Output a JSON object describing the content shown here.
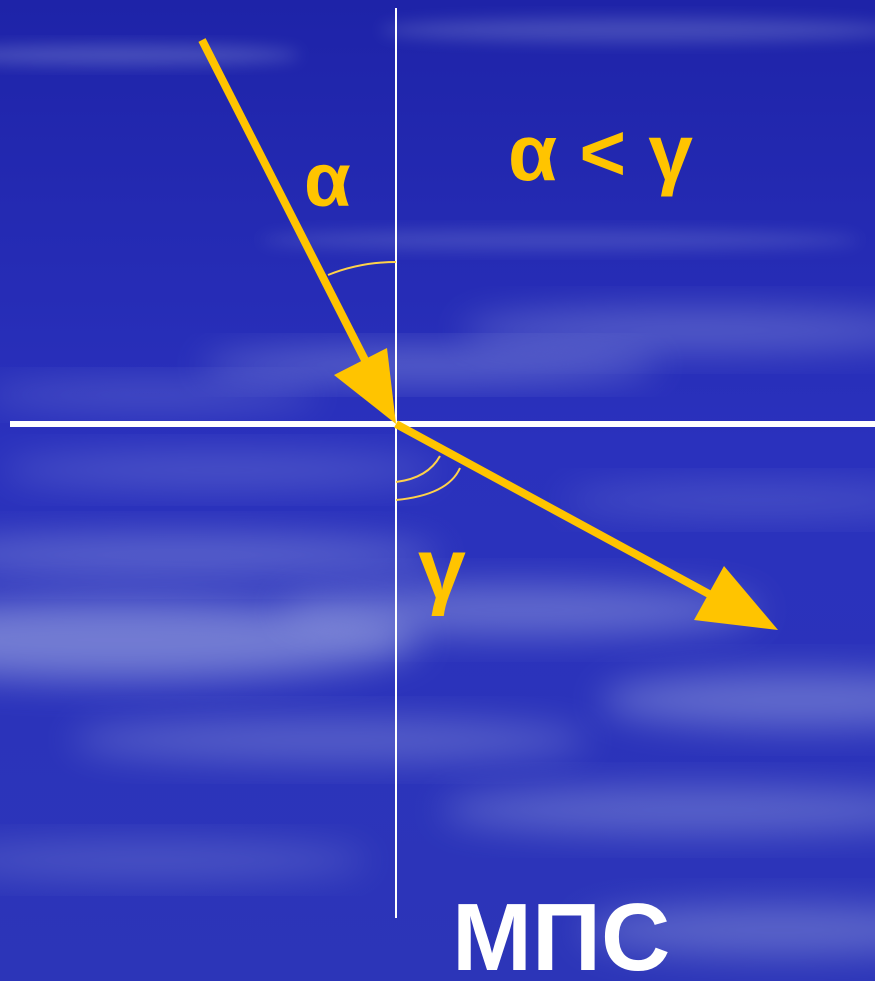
{
  "labels": {
    "incidence_angle": "α",
    "refraction_angle": "γ",
    "relation": "α < γ",
    "boundary_name": "МПС"
  },
  "colors": {
    "background_dark": "#1a1f9a",
    "background_mid": "#2f36c4",
    "cloud": "#c9d4f0",
    "ray": "#ffc400",
    "arc": "#ffd24a",
    "lines": "#ffffff",
    "text_yellow": "#ffc400",
    "text_white": "#ffffff"
  }
}
